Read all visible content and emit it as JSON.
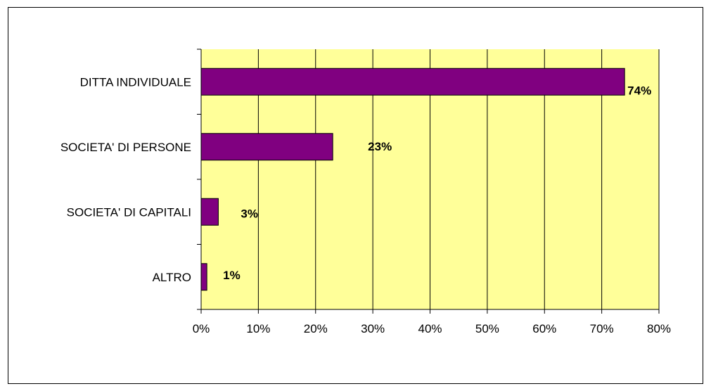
{
  "chart_data": {
    "type": "bar",
    "orientation": "horizontal",
    "categories": [
      "DITTA INDIVIDUALE",
      "SOCIETA' DI PERSONE",
      "SOCIETA' DI CAPITALI",
      "ALTRO"
    ],
    "values": [
      74,
      23,
      3,
      1
    ],
    "data_labels": [
      "74%",
      "23%",
      "3%",
      "1%"
    ],
    "xlim": [
      0,
      80
    ],
    "x_ticks": [
      "0%",
      "10%",
      "20%",
      "30%",
      "40%",
      "50%",
      "60%",
      "70%",
      "80%"
    ],
    "grid": true,
    "legend": "none",
    "colors": {
      "bar": "#800080",
      "plot_background": "#ffff99",
      "grid": "#000000"
    }
  }
}
